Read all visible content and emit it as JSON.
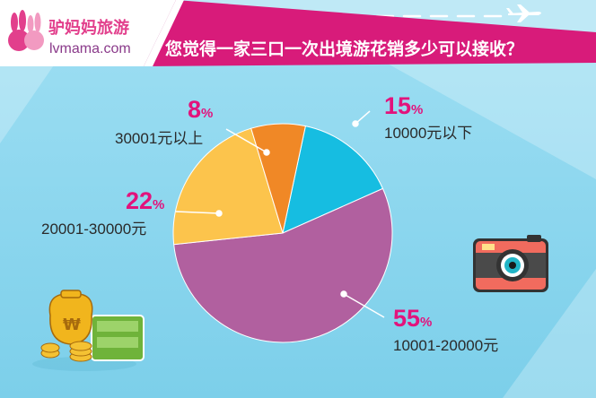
{
  "brand": {
    "name_cn": "驴妈妈旅游",
    "url": "lvmama.com",
    "logo_icon": "rabbit-logo-icon"
  },
  "header": {
    "question": "您觉得一家三口一次出境游花销多少可以接收？"
  },
  "colors": {
    "background": "#8dd7ef",
    "banner": "#d81b7a",
    "banner_text": "#ffffff",
    "percent_text": "#e2137c",
    "label_text": "#2a2a2a"
  },
  "decor": {
    "plane": "airplane-icon",
    "camera": "camera-icon",
    "money": "money-stack-icon"
  },
  "chart_data": {
    "type": "pie",
    "title": "您觉得一家三口一次出境游花销多少可以接收？",
    "slices": [
      {
        "label": "10000元以下",
        "value": 15,
        "pct_num": "15",
        "pct_sign": "%",
        "color": "#16bde1"
      },
      {
        "label": "10001-20000元",
        "value": 55,
        "pct_num": "55",
        "pct_sign": "%",
        "color": "#b1609f"
      },
      {
        "label": "20001-30000元",
        "value": 22,
        "pct_num": "22",
        "pct_sign": "%",
        "color": "#fcc44c"
      },
      {
        "label": "30001元以上",
        "value": 8,
        "pct_num": "8",
        "pct_sign": "%",
        "color": "#f08826"
      }
    ]
  }
}
